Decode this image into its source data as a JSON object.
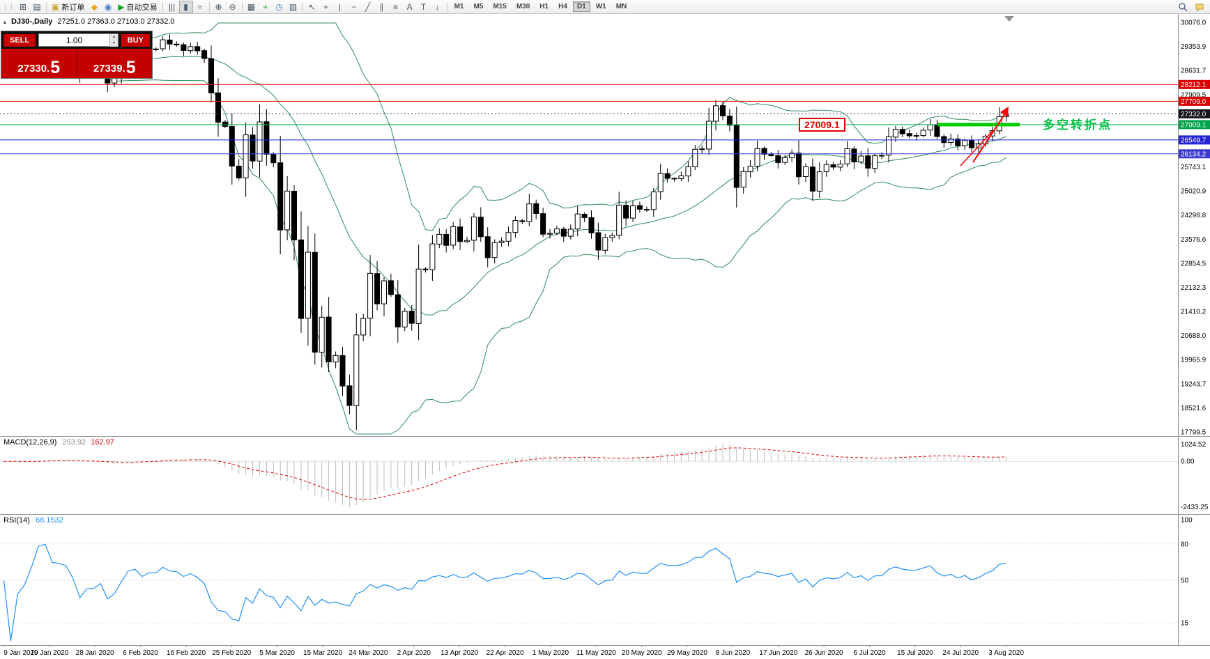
{
  "toolbar": {
    "items": [
      {
        "name": "new-chart",
        "glyph": "⊞"
      },
      {
        "name": "profiles",
        "glyph": "▤"
      },
      {
        "sep": true
      },
      {
        "name": "new-order",
        "glyph": "▣",
        "glyph_color": "#caa42a",
        "label": "新订单"
      },
      {
        "name": "mql5",
        "glyph": "◆",
        "glyph_color": "#e8a818"
      },
      {
        "name": "market",
        "glyph": "◉",
        "glyph_color": "#3a7abf"
      },
      {
        "name": "autotrading",
        "glyph": "▶",
        "glyph_color": "#1ca51c",
        "label": "自动交易"
      },
      {
        "sep": true
      },
      {
        "name": "bar-chart",
        "glyph": "|||"
      },
      {
        "name": "candle-chart",
        "glyph": "▮",
        "active": true
      },
      {
        "name": "line-chart",
        "glyph": "≈"
      },
      {
        "sep": true
      },
      {
        "name": "zoom-in",
        "glyph": "⊕"
      },
      {
        "name": "zoom-out",
        "glyph": "⊖"
      },
      {
        "sep": true
      },
      {
        "name": "tile-windows",
        "glyph": "▦"
      },
      {
        "name": "indicator-list",
        "glyph": "+",
        "glyph_color": "#1ca51c"
      },
      {
        "name": "periods",
        "glyph": "◷",
        "glyph_color": "#3a7abf"
      },
      {
        "name": "templates",
        "glyph": "▧"
      },
      {
        "sep": true
      },
      {
        "name": "cursor",
        "glyph": "↖"
      },
      {
        "name": "crosshair",
        "glyph": "+"
      },
      {
        "name": "vertical-line",
        "glyph": "|"
      },
      {
        "name": "horizontal-line",
        "glyph": "−"
      },
      {
        "name": "trendline",
        "glyph": "╱"
      },
      {
        "name": "channel",
        "glyph": "∥"
      },
      {
        "name": "fibonacci",
        "glyph": "≡"
      },
      {
        "name": "text",
        "glyph": "A"
      },
      {
        "name": "label",
        "glyph": "T"
      },
      {
        "name": "arrows",
        "glyph": "↓"
      },
      {
        "sep": true
      }
    ],
    "timeframes": [
      "M1",
      "M5",
      "M15",
      "M30",
      "H1",
      "H4",
      "D1",
      "W1",
      "MN"
    ],
    "active_timeframe": "D1"
  },
  "chart": {
    "symbol_period": "DJ30-,Daily",
    "ohlc_text": "27251.0 27363.0 27103.0 27332.0"
  },
  "trade_panel": {
    "sell_label": "SELL",
    "buy_label": "BUY",
    "volume": "1.00",
    "sell_price_main": "27330.",
    "sell_price_pip": "5",
    "buy_price_main": "27339.",
    "buy_price_pip": "5"
  },
  "annotations": {
    "price_box": "27009.1",
    "turning_point_text": "多空转折点"
  },
  "indicators": {
    "macd_name": "MACD(12,26,9)",
    "macd_main": "253.92",
    "macd_signal": "162.97",
    "rsi_name": "RSI(14)",
    "rsi_value": "68.1532"
  },
  "axes": {
    "price_ticks": [
      "30076.0",
      "29353.9",
      "28631.7",
      "27909.5",
      "25743.1",
      "25020.9",
      "24298.8",
      "23576.6",
      "22854.5",
      "22132.3",
      "21410.2",
      "20688.0",
      "19965.9",
      "19243.7",
      "18521.6",
      "17799.5"
    ],
    "macd_ticks": [
      "1024.52",
      "0.00",
      "-2433.25"
    ],
    "rsi_ticks": [
      {
        "value": 100,
        "label": "100"
      },
      {
        "value": 80,
        "label": "80"
      },
      {
        "value": 50,
        "label": "50"
      },
      {
        "value": 15,
        "label": "15"
      }
    ],
    "dates": [
      "9 Jan 2020",
      "19 Jan 2020",
      "28 Jan 2020",
      "6 Feb 2020",
      "16 Feb 2020",
      "25 Feb 2020",
      "5 Mar 2020",
      "15 Mar 2020",
      "24 Mar 2020",
      "2 Apr 2020",
      "13 Apr 2020",
      "22 Apr 2020",
      "1 May 2020",
      "11 May 2020",
      "20 May 2020",
      "29 May 2020",
      "8 Jun 2020",
      "17 Jun 2020",
      "26 Jun 2020",
      "6 Jul 2020",
      "15 Jul 2020",
      "24 Jul 2020",
      "3 Aug 2020"
    ]
  },
  "chart_data": {
    "type": "candlestick",
    "symbol": "DJ30",
    "timeframe": "Daily",
    "price_range": [
      17799.5,
      30076.0
    ],
    "closes": [
      28957,
      28824,
      28907,
      28939,
      29030,
      29297,
      29348,
      29196,
      29186,
      29160,
      28990,
      28536,
      28723,
      28734,
      28859,
      28256,
      28400,
      28808,
      29291,
      29380,
      29103,
      29277,
      29276,
      29551,
      29423,
      29398,
      29232,
      29348,
      29220,
      28992,
      27961,
      27081,
      26958,
      25767,
      25409,
      26703,
      25917,
      27091,
      26121,
      25865,
      23851,
      25018,
      23553,
      21201,
      23186,
      20189,
      21237,
      19899,
      20087,
      19174,
      18592,
      20705,
      21201,
      22552,
      21637,
      22327,
      21917,
      20944,
      21413,
      21053,
      22680,
      22654,
      23434,
      23719,
      23391,
      23950,
      23504,
      23537,
      24242,
      23650,
      23019,
      23476,
      23515,
      23775,
      24134,
      24102,
      24634,
      24346,
      23724,
      23749,
      23883,
      23665,
      23876,
      24331,
      24222,
      23765,
      23248,
      23625,
      23685,
      24597,
      24207,
      24576,
      24474,
      24465,
      24995,
      25548,
      25401,
      25383,
      25475,
      25743,
      26270,
      26282,
      27111,
      27572,
      27272,
      26990,
      25128,
      25605,
      25763,
      26290,
      26120,
      26080,
      25871,
      26025,
      26156,
      25446,
      25746,
      25016,
      25596,
      25813,
      25735,
      25827,
      26287,
      25890,
      26067,
      25706,
      26075,
      26086,
      26643,
      26870,
      26735,
      26672,
      26681,
      26840,
      27005,
      26652,
      26470,
      26584,
      26379,
      26539,
      26313,
      26428,
      26664,
      26828,
      27251,
      27332
    ],
    "last_candle": {
      "open": 27251.0,
      "high": 27363.0,
      "low": 27103.0,
      "close": 27332.0
    },
    "indicator_settings": {
      "bollinger": {
        "period": 20,
        "deviation": 2
      },
      "macd": {
        "fast": 12,
        "slow": 26,
        "signal": 9,
        "current_main": 253.92,
        "current_signal": 162.97
      },
      "rsi": {
        "period": 14,
        "current": 68.1532
      }
    },
    "levels": [
      {
        "price": 28212.1,
        "color": "#e00000",
        "label_bg": "#d80000",
        "style": "solid",
        "label": "28212.1"
      },
      {
        "price": 27709.0,
        "color": "#e00000",
        "label_bg": "#d80000",
        "style": "solid",
        "label": "27709.0"
      },
      {
        "price": 27332.0,
        "color": "#35353f",
        "label_bg": "#14141c",
        "style": "dotted",
        "label": "27332.0",
        "current": true
      },
      {
        "price": 27009.1,
        "color": "#00b050",
        "label_bg": "#00a24a",
        "style": "solid",
        "label": "27009.1"
      },
      {
        "price": 26549.7,
        "color": "#2020e0",
        "label_bg": "#2525cf",
        "style": "solid",
        "label": "26549.7"
      },
      {
        "price": 26134.2,
        "color": "#4040e0",
        "label_bg": "#3a3ace",
        "style": "solid",
        "label": "26134.2"
      }
    ],
    "highlight_segment": {
      "price": 27009.1,
      "color": "#00cc00"
    },
    "trend_arrow": {
      "color": "#ff0000",
      "direction": "up"
    }
  }
}
